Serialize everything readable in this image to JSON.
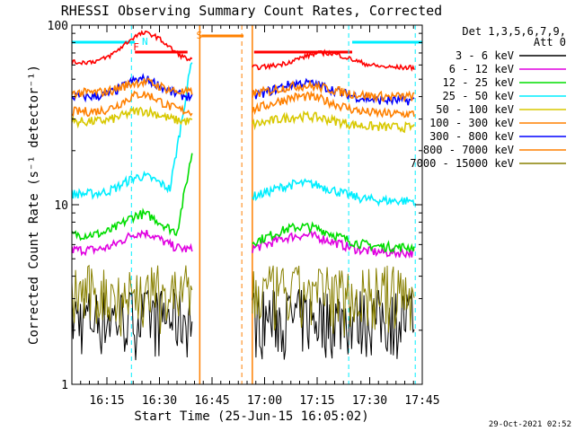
{
  "chart_data": {
    "type": "line",
    "title": "RHESSI Observing Summary Count Rates, Corrected",
    "xlabel": "Start Time (25-Jun-15 16:05:02)",
    "ylabel": "Corrected Count Rate (s⁻¹ detector⁻¹)",
    "yscale": "log",
    "ylim": [
      1,
      100
    ],
    "xlim_minutes": [
      0,
      100
    ],
    "y_ticks": [
      {
        "v": 1,
        "label": "1"
      },
      {
        "v": 10,
        "label": "10"
      },
      {
        "v": 100,
        "label": "100"
      }
    ],
    "x_ticks": [
      {
        "m": 10,
        "label": "16:15"
      },
      {
        "m": 25,
        "label": "16:30"
      },
      {
        "m": 40,
        "label": "16:45"
      },
      {
        "m": 55,
        "label": "17:00"
      },
      {
        "m": 70,
        "label": "17:15"
      },
      {
        "m": 85,
        "label": "17:30"
      },
      {
        "m": 100,
        "label": "17:45"
      }
    ],
    "legend_header": [
      "Det 1,3,5,6,7,9,",
      "Att 0"
    ],
    "legend_position": "right",
    "flag_letters": {
      "F": "F",
      "N": "N",
      "S": "S"
    },
    "timestamp": "29-Oct-2021 02:52",
    "series": [
      {
        "name": "3 - 6 keV",
        "color": "#000000",
        "pre": 1.7,
        "post": 1.7,
        "bump": 0.02
      },
      {
        "name": "6 - 12 keV",
        "color": "#e000e0",
        "pre": 5.6,
        "post": 5.4,
        "bump": 0.25
      },
      {
        "name": "12 - 25 keV",
        "color": "#00dd00",
        "pre": 6.8,
        "post": 5.8,
        "bump": 0.3
      },
      {
        "name": "25 - 50 keV",
        "color": "#00eeff",
        "pre": 11.5,
        "post": 10.5,
        "bump": 0.25
      },
      {
        "name": "50 - 100 keV",
        "color": "#d8c800",
        "pre": 29,
        "post": 27,
        "bump": 0.15
      },
      {
        "name": "100 - 300 keV",
        "color": "#ff8000",
        "pre": 33,
        "post": 32,
        "bump": 0.25
      },
      {
        "name": "300 - 800 keV",
        "color": "#0000ff",
        "pre": 40,
        "post": 38,
        "bump": 0.25
      },
      {
        "name": "800 - 7000 keV",
        "color": "#ff8000",
        "pre": 42,
        "post": 40,
        "bump": 0.15
      },
      {
        "name": "7000 - 15000 keV",
        "color": "#888000",
        "pre": 2.3,
        "post": 2.3,
        "bump": 0.05
      }
    ],
    "top_red_series": {
      "color": "#ff0000",
      "pre": 62,
      "peak": 90,
      "post": 58
    }
  }
}
